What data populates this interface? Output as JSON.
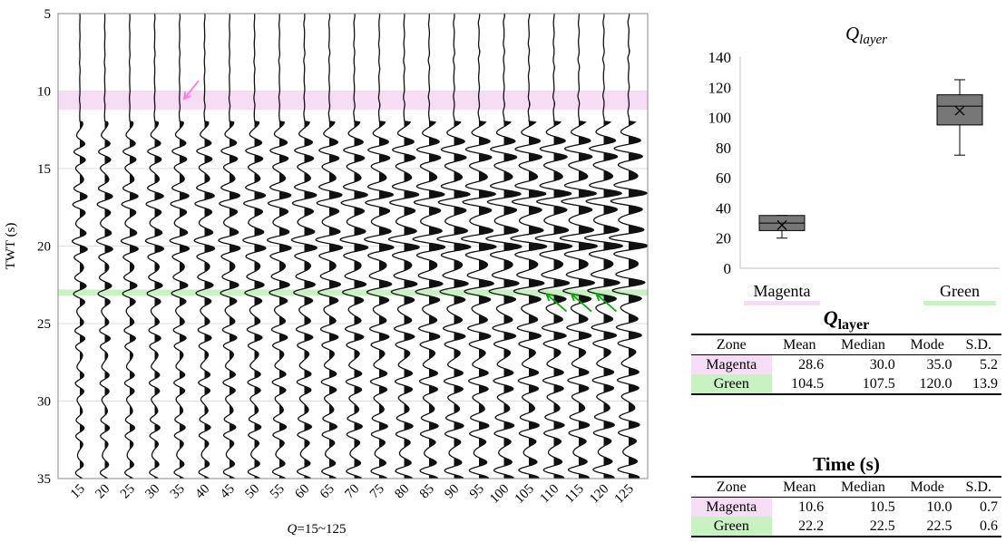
{
  "colors": {
    "magenta_band": "#f7dcf5",
    "green_band": "#c9f2c3",
    "magenta_arrow": "#ff77e6",
    "green_arrow": "#12a312",
    "trace": "#111111",
    "box_fill": "#777777"
  },
  "seismic": {
    "ylabel": "TWT (s)",
    "xlabel_q": "Q",
    "xlabel_rest": "=15~125",
    "ylim": [
      5,
      35
    ],
    "yticks": [
      5,
      10,
      15,
      20,
      25,
      30,
      35
    ],
    "q_values": [
      "15",
      "20",
      "25",
      "30",
      "35",
      "40",
      "45",
      "50",
      "55",
      "60",
      "65",
      "70",
      "75",
      "80",
      "85",
      "90",
      "95",
      "100",
      "105",
      "110",
      "115",
      "120",
      "125"
    ],
    "magenta_band": [
      10,
      11.2
    ],
    "green_band": [
      22.8,
      23.2
    ],
    "magenta_arrows": [
      {
        "q": 35,
        "twt": 10.5
      }
    ],
    "green_arrows": [
      {
        "q": 110,
        "twt": 23.1
      },
      {
        "q": 115,
        "twt": 23.1
      },
      {
        "q": 120,
        "twt": 23.1
      }
    ]
  },
  "chart_data": [
    {
      "type": "box",
      "title_main": "Q",
      "title_sub": "layer",
      "categories": [
        "Magenta",
        "Green"
      ],
      "ylim": [
        0,
        140
      ],
      "yticks": [
        0,
        20,
        40,
        60,
        80,
        100,
        120,
        140
      ],
      "boxes": [
        {
          "name": "Magenta",
          "min": 20,
          "q1": 25,
          "median": 30,
          "q3": 35,
          "max": 35,
          "mean": 28.6
        },
        {
          "name": "Green",
          "min": 75,
          "q1": 95,
          "median": 107.5,
          "q3": 115,
          "max": 125,
          "mean": 104.5
        }
      ]
    },
    {
      "type": "table",
      "title_main": "Q",
      "title_sub": "layer",
      "headers": [
        "Zone",
        "Mean",
        "Median",
        "Mode",
        "S.D."
      ],
      "rows": [
        [
          "Magenta",
          "28.6",
          "30.0",
          "35.0",
          "5.2"
        ],
        [
          "Green",
          "104.5",
          "107.5",
          "120.0",
          "13.9"
        ]
      ]
    },
    {
      "type": "table",
      "title": "Time (s)",
      "headers": [
        "Zone",
        "Mean",
        "Median",
        "Mode",
        "S.D."
      ],
      "rows": [
        [
          "Magenta",
          "10.6",
          "10.5",
          "10.0",
          "0.7"
        ],
        [
          "Green",
          "22.2",
          "22.5",
          "22.5",
          "0.6"
        ]
      ]
    }
  ]
}
